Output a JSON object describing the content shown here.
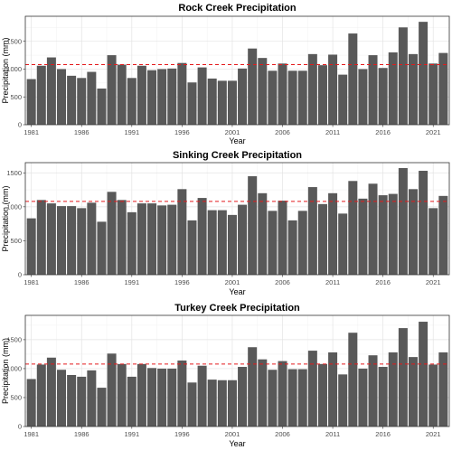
{
  "colors": {
    "bar": "#595959",
    "reference_line": "#e41a1c"
  },
  "chart_data": [
    {
      "type": "bar",
      "title": "Rock Creek Precipitation",
      "xlabel": "Year",
      "ylabel": "Precipitation (mm)",
      "x": [
        1981,
        1982,
        1983,
        1984,
        1985,
        1986,
        1987,
        1988,
        1989,
        1990,
        1991,
        1992,
        1993,
        1994,
        1995,
        1996,
        1997,
        1998,
        1999,
        2000,
        2001,
        2002,
        2003,
        2004,
        2005,
        2006,
        2007,
        2008,
        2009,
        2010,
        2011,
        2012,
        2013,
        2014,
        2015,
        2016,
        2017,
        2018,
        2019,
        2020,
        2021,
        2022
      ],
      "values": [
        820,
        1060,
        1210,
        1000,
        880,
        840,
        950,
        650,
        1250,
        1080,
        840,
        1060,
        980,
        1000,
        1010,
        1110,
        760,
        1030,
        830,
        790,
        790,
        1010,
        1370,
        1200,
        970,
        1100,
        970,
        970,
        1270,
        1070,
        1260,
        900,
        1640,
        1000,
        1250,
        1020,
        1300,
        1750,
        1270,
        1850,
        1100,
        1290
      ],
      "reference_value": 1080,
      "ylim": [
        0,
        1950
      ],
      "yticks": [
        0,
        500,
        1000,
        1500
      ],
      "xticks": [
        1981,
        1986,
        1991,
        1996,
        2001,
        2006,
        2011,
        2016,
        2021
      ],
      "grid": true,
      "legend": "none"
    },
    {
      "type": "bar",
      "title": "Sinking Creek Precipitation",
      "xlabel": "Year",
      "ylabel": "Precipitation (mm)",
      "x": [
        1981,
        1982,
        1983,
        1984,
        1985,
        1986,
        1987,
        1988,
        1989,
        1990,
        1991,
        1992,
        1993,
        1994,
        1995,
        1996,
        1997,
        1998,
        1999,
        2000,
        2001,
        2002,
        2003,
        2004,
        2005,
        2006,
        2007,
        2008,
        2009,
        2010,
        2011,
        2012,
        2013,
        2014,
        2015,
        2016,
        2017,
        2018,
        2019,
        2020,
        2021,
        2022
      ],
      "values": [
        830,
        1100,
        1050,
        1010,
        1010,
        980,
        1060,
        780,
        1220,
        1100,
        920,
        1050,
        1050,
        1020,
        1030,
        1260,
        800,
        1130,
        950,
        950,
        880,
        1030,
        1450,
        1200,
        940,
        1090,
        800,
        940,
        1290,
        1040,
        1200,
        900,
        1380,
        1120,
        1340,
        1170,
        1190,
        1570,
        1260,
        1530,
        980,
        1160
      ],
      "reference_value": 1080,
      "ylim": [
        0,
        1650
      ],
      "yticks": [
        0,
        500,
        1000,
        1500
      ],
      "xticks": [
        1981,
        1986,
        1991,
        1996,
        2001,
        2006,
        2011,
        2016,
        2021
      ],
      "grid": true,
      "legend": "none"
    },
    {
      "type": "bar",
      "title": "Turkey Creek Precipitation",
      "xlabel": "Year",
      "ylabel": "Precipitation (mm)",
      "x": [
        1981,
        1982,
        1983,
        1984,
        1985,
        1986,
        1987,
        1988,
        1989,
        1990,
        1991,
        1992,
        1993,
        1994,
        1995,
        1996,
        1997,
        1998,
        1999,
        2000,
        2001,
        2002,
        2003,
        2004,
        2005,
        2006,
        2007,
        2008,
        2009,
        2010,
        2011,
        2012,
        2013,
        2014,
        2015,
        2016,
        2017,
        2018,
        2019,
        2020,
        2021,
        2022
      ],
      "values": [
        820,
        1070,
        1190,
        980,
        890,
        860,
        970,
        670,
        1260,
        1080,
        860,
        1080,
        1010,
        1000,
        1000,
        1140,
        760,
        1050,
        810,
        800,
        800,
        1030,
        1370,
        1160,
        980,
        1130,
        990,
        990,
        1310,
        1080,
        1280,
        900,
        1620,
        1000,
        1230,
        1030,
        1280,
        1700,
        1200,
        1810,
        1070,
        1280
      ],
      "reference_value": 1080,
      "ylim": [
        0,
        1920
      ],
      "yticks": [
        0,
        500,
        1000,
        1500
      ],
      "xticks": [
        1981,
        1986,
        1991,
        1996,
        2001,
        2006,
        2011,
        2016,
        2021
      ],
      "grid": true,
      "legend": "none"
    }
  ]
}
